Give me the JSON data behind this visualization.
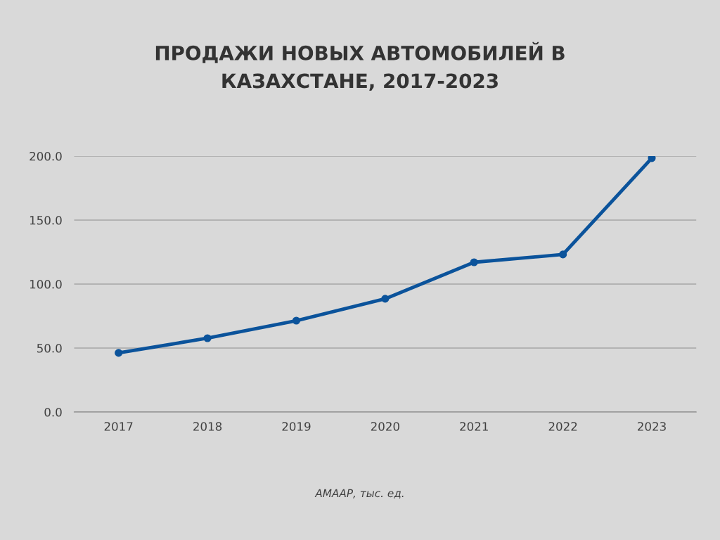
{
  "chart_data": {
    "type": "line",
    "title": "ПРОДАЖИ НОВЫХ АВТОМОБИЛЕЙ В\nКАЗАХСТАНЕ, 2017-2023",
    "categories": [
      "2017",
      "2018",
      "2019",
      "2020",
      "2021",
      "2022",
      "2023"
    ],
    "series": [
      {
        "color": "#0b539b",
        "values": [
          46.2,
          57.7,
          71.4,
          88.5,
          117.0,
          123.1,
          198.4
        ]
      }
    ],
    "ylim": [
      0,
      200
    ],
    "yticks": [
      {
        "value": 0,
        "label": "0.0"
      },
      {
        "value": 50,
        "label": "50.0"
      },
      {
        "value": 100,
        "label": "100.0"
      },
      {
        "value": 150,
        "label": "150.0"
      },
      {
        "value": 200,
        "label": "200.0"
      }
    ],
    "grid": "y",
    "marker": "circle",
    "line_style": "solid",
    "annotations": [
      "АМААР, тыс. ед."
    ]
  }
}
